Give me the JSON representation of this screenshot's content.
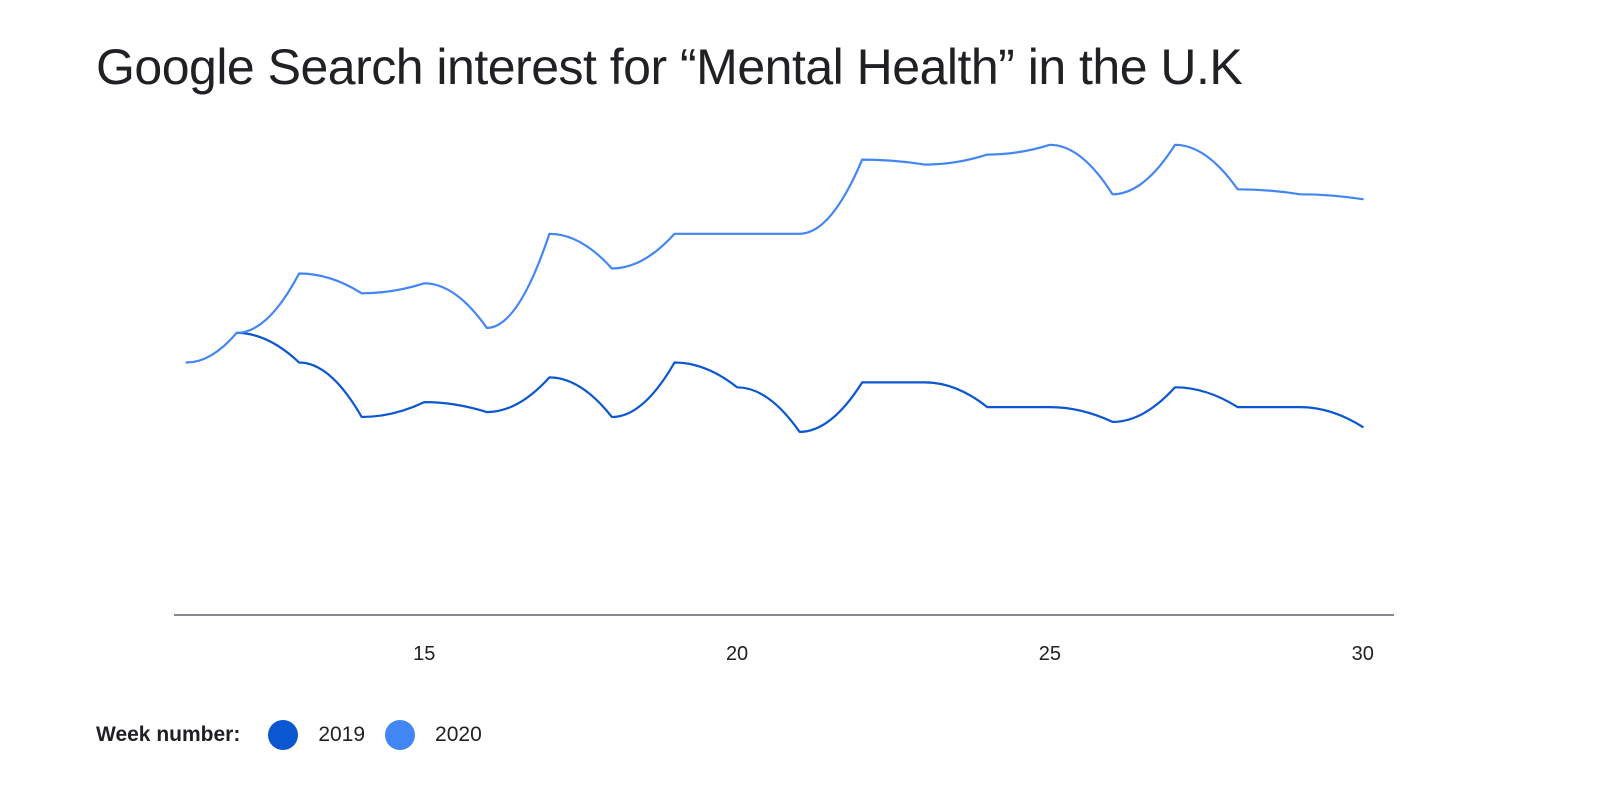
{
  "chart_data": {
    "type": "line",
    "title": "Google Search interest for “Mental Health” in the U.K",
    "xlabel": "",
    "ylabel": "",
    "xlim": [
      11,
      30.5
    ],
    "ylim": [
      0,
      100
    ],
    "x_ticks": [
      15,
      20,
      25,
      30
    ],
    "grid": false,
    "legend": {
      "title": "Week number:",
      "placement": "bottom-left"
    },
    "series": [
      {
        "name": "2019",
        "color": "#0b57d0",
        "x": [
          12,
          13,
          14,
          15,
          16,
          17,
          18,
          19,
          20,
          21,
          22,
          23,
          24,
          25,
          26,
          27,
          28,
          29,
          30
        ],
        "y": [
          57,
          51,
          40,
          43,
          41,
          48,
          40,
          51,
          46,
          37,
          47,
          47,
          42,
          42,
          39,
          46,
          42,
          42,
          38
        ]
      },
      {
        "name": "2020",
        "color": "#4285f4",
        "x": [
          11.2,
          12,
          13,
          14,
          15,
          16,
          17,
          18,
          19,
          20,
          21,
          22,
          23,
          24,
          25,
          26,
          27,
          28,
          29,
          30
        ],
        "y": [
          51,
          57,
          69,
          65,
          67,
          58,
          77,
          70,
          77,
          77,
          77,
          92,
          91,
          93,
          95,
          85,
          95,
          86,
          85,
          84
        ]
      }
    ]
  }
}
